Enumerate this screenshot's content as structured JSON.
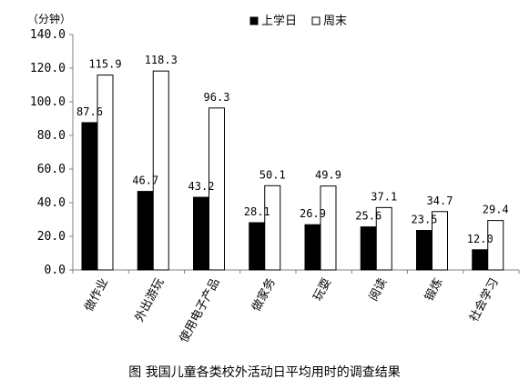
{
  "caption": "图 我国儿童各类校外活动日平均用时的调查结果",
  "chart_data": {
    "type": "bar",
    "title": "",
    "ylabel": "（分钟）",
    "xlabel": "",
    "ylim": [
      0,
      140
    ],
    "yticks": [
      "0.0",
      "20.0",
      "40.0",
      "60.0",
      "80.0",
      "100.0",
      "120.0",
      "140.0"
    ],
    "grid": false,
    "legend_position": "top-right",
    "categories": [
      "做作业",
      "外出游玩",
      "使用电子产品",
      "做家务",
      "玩耍",
      "阅读",
      "锻炼",
      "社会学习"
    ],
    "series": [
      {
        "name": "上学日",
        "color": "#000000",
        "values": [
          87.6,
          46.7,
          43.2,
          28.1,
          26.9,
          25.6,
          23.5,
          12.0
        ],
        "labels": [
          "87.6",
          "46.7",
          "43.2",
          "28.1",
          "26.9",
          "25.6",
          "23.5",
          "12.0"
        ]
      },
      {
        "name": "周末",
        "color": "#ffffff",
        "values": [
          115.9,
          118.3,
          96.3,
          50.1,
          49.9,
          37.1,
          34.7,
          29.4
        ],
        "labels": [
          "115.9",
          "118.3",
          "96.3",
          "50.1",
          "49.9",
          "37.1",
          "34.7",
          "29.4"
        ]
      }
    ]
  }
}
